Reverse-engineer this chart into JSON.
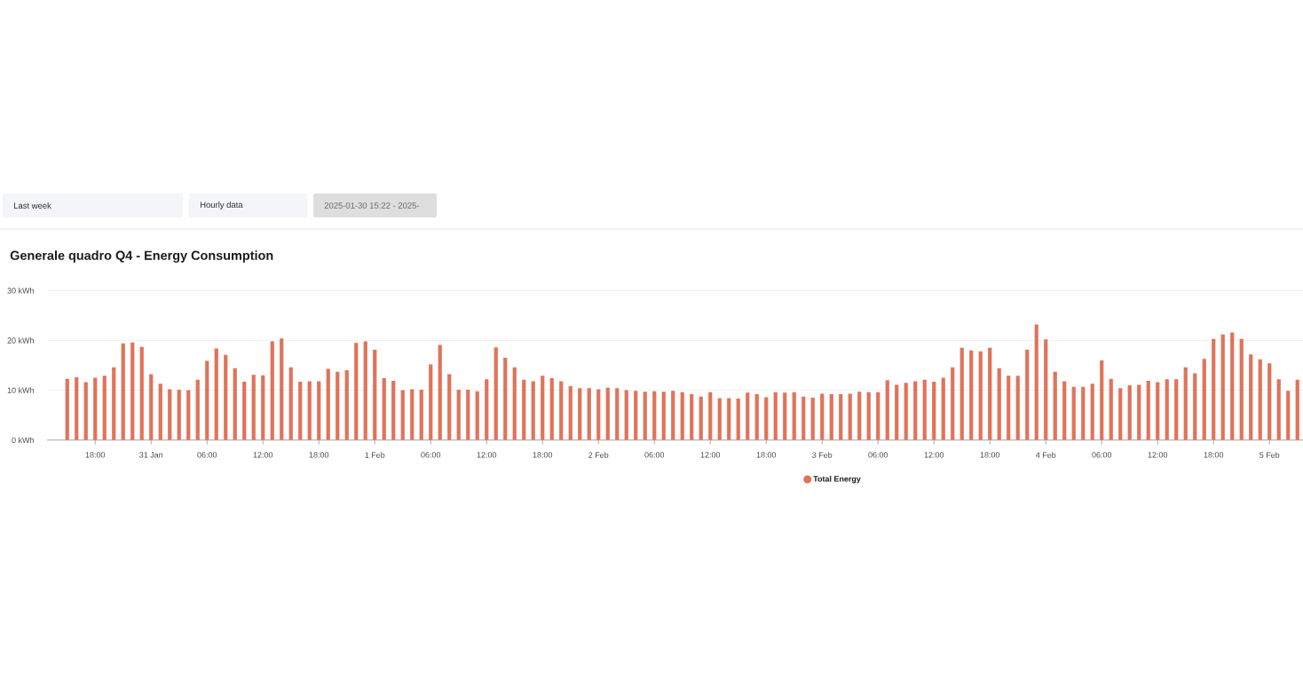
{
  "chart_data": {
    "type": "bar",
    "title": "Generale quadro Q4 - Energy Consumption",
    "annotations": [
      "Last week",
      "Hourly data",
      "2025-01-30 15:22 - 2025-"
    ],
    "x": [
      "2025-01-30T15:00",
      "2025-01-30T16:00",
      "2025-01-30T17:00",
      "2025-01-30T18:00",
      "2025-01-30T19:00",
      "2025-01-30T20:00",
      "2025-01-30T21:00",
      "2025-01-30T22:00",
      "2025-01-30T23:00",
      "2025-01-31T00:00",
      "2025-01-31T01:00",
      "2025-01-31T02:00",
      "2025-01-31T03:00",
      "2025-01-31T04:00",
      "2025-01-31T05:00",
      "2025-01-31T06:00",
      "2025-01-31T07:00",
      "2025-01-31T08:00",
      "2025-01-31T09:00",
      "2025-01-31T10:00",
      "2025-01-31T11:00",
      "2025-01-31T12:00",
      "2025-01-31T13:00",
      "2025-01-31T14:00",
      "2025-01-31T15:00",
      "2025-01-31T16:00",
      "2025-01-31T17:00",
      "2025-01-31T18:00",
      "2025-01-31T19:00",
      "2025-01-31T20:00",
      "2025-01-31T21:00",
      "2025-01-31T22:00",
      "2025-01-31T23:00",
      "2025-02-01T00:00",
      "2025-02-01T01:00",
      "2025-02-01T02:00",
      "2025-02-01T03:00",
      "2025-02-01T04:00",
      "2025-02-01T05:00",
      "2025-02-01T06:00",
      "2025-02-01T07:00",
      "2025-02-01T08:00",
      "2025-02-01T09:00",
      "2025-02-01T10:00",
      "2025-02-01T11:00",
      "2025-02-01T12:00",
      "2025-02-01T13:00",
      "2025-02-01T14:00",
      "2025-02-01T15:00",
      "2025-02-01T16:00",
      "2025-02-01T17:00",
      "2025-02-01T18:00",
      "2025-02-01T19:00",
      "2025-02-01T20:00",
      "2025-02-01T21:00",
      "2025-02-01T22:00",
      "2025-02-01T23:00",
      "2025-02-02T00:00",
      "2025-02-02T01:00",
      "2025-02-02T02:00",
      "2025-02-02T03:00",
      "2025-02-02T04:00",
      "2025-02-02T05:00",
      "2025-02-02T06:00",
      "2025-02-02T07:00",
      "2025-02-02T08:00",
      "2025-02-02T09:00",
      "2025-02-02T10:00",
      "2025-02-02T11:00",
      "2025-02-02T12:00",
      "2025-02-02T13:00",
      "2025-02-02T14:00",
      "2025-02-02T15:00",
      "2025-02-02T16:00",
      "2025-02-02T17:00",
      "2025-02-02T18:00",
      "2025-02-02T19:00",
      "2025-02-02T20:00",
      "2025-02-02T21:00",
      "2025-02-02T22:00",
      "2025-02-02T23:00",
      "2025-02-03T00:00",
      "2025-02-03T01:00",
      "2025-02-03T02:00",
      "2025-02-03T03:00",
      "2025-02-03T04:00",
      "2025-02-03T05:00",
      "2025-02-03T06:00",
      "2025-02-03T07:00",
      "2025-02-03T08:00",
      "2025-02-03T09:00",
      "2025-02-03T10:00",
      "2025-02-03T11:00",
      "2025-02-03T12:00",
      "2025-02-03T13:00",
      "2025-02-03T14:00",
      "2025-02-03T15:00",
      "2025-02-03T16:00",
      "2025-02-03T17:00",
      "2025-02-03T18:00",
      "2025-02-03T19:00",
      "2025-02-03T20:00",
      "2025-02-03T21:00",
      "2025-02-03T22:00",
      "2025-02-03T23:00",
      "2025-02-04T00:00",
      "2025-02-04T01:00",
      "2025-02-04T02:00",
      "2025-02-04T03:00",
      "2025-02-04T04:00",
      "2025-02-04T05:00",
      "2025-02-04T06:00",
      "2025-02-04T07:00",
      "2025-02-04T08:00",
      "2025-02-04T09:00",
      "2025-02-04T10:00",
      "2025-02-04T11:00",
      "2025-02-04T12:00",
      "2025-02-04T13:00",
      "2025-02-04T14:00",
      "2025-02-04T15:00",
      "2025-02-04T16:00",
      "2025-02-04T17:00",
      "2025-02-04T18:00",
      "2025-02-04T19:00",
      "2025-02-04T20:00",
      "2025-02-04T21:00",
      "2025-02-04T22:00",
      "2025-02-04T23:00",
      "2025-02-05T00:00",
      "2025-02-05T01:00",
      "2025-02-05T02:00",
      "2025-02-05T03:00"
    ],
    "series": [
      {
        "name": "Total Energy",
        "color": "#e0735a",
        "values": [
          12.3,
          12.6,
          11.6,
          12.5,
          12.9,
          14.6,
          19.4,
          19.6,
          18.7,
          13.2,
          11.3,
          10.2,
          10.1,
          10.0,
          12.1,
          15.9,
          18.4,
          17.1,
          14.4,
          11.7,
          13.1,
          13.0,
          19.8,
          20.4,
          14.6,
          11.7,
          11.8,
          11.8,
          14.3,
          13.7,
          14.0,
          19.5,
          19.8,
          18.1,
          12.4,
          11.9,
          10.0,
          10.2,
          10.1,
          15.2,
          19.1,
          13.2,
          10.1,
          10.1,
          9.8,
          12.2,
          18.6,
          16.5,
          14.6,
          12.1,
          11.8,
          12.9,
          12.4,
          11.8,
          10.8,
          10.4,
          10.4,
          10.2,
          10.5,
          10.4,
          10.0,
          9.9,
          9.7,
          9.8,
          9.7,
          9.9,
          9.6,
          9.2,
          8.7,
          9.6,
          8.4,
          8.4,
          8.3,
          9.5,
          9.2,
          8.6,
          9.6,
          9.5,
          9.6,
          8.7,
          8.5,
          9.3,
          9.2,
          9.2,
          9.3,
          9.7,
          9.6,
          9.6,
          12.0,
          11.1,
          11.5,
          11.8,
          12.1,
          11.7,
          12.5,
          14.6,
          18.5,
          18.0,
          17.8,
          18.5,
          14.4,
          12.9,
          12.9,
          18.1,
          23.2,
          20.2,
          13.7,
          11.8,
          10.7,
          10.7,
          11.3,
          16.0,
          12.3,
          10.4,
          11.0,
          11.1,
          11.9,
          11.6,
          12.2,
          12.2,
          14.6,
          13.4,
          16.3,
          20.3,
          21.2,
          21.6,
          20.3,
          17.2,
          16.2,
          15.4,
          12.2,
          9.9,
          12.1
        ]
      }
    ],
    "xlim": [
      "2025-01-30T12:50",
      "2025-02-05T03:36"
    ],
    "xticks": [
      {
        "value": "2025-01-30T18:00",
        "label": "18:00"
      },
      {
        "value": "2025-01-31T00:00",
        "label": "31 Jan"
      },
      {
        "value": "2025-01-31T06:00",
        "label": "06:00"
      },
      {
        "value": "2025-01-31T12:00",
        "label": "12:00"
      },
      {
        "value": "2025-01-31T18:00",
        "label": "18:00"
      },
      {
        "value": "2025-02-01T00:00",
        "label": "1 Feb"
      },
      {
        "value": "2025-02-01T06:00",
        "label": "06:00"
      },
      {
        "value": "2025-02-01T12:00",
        "label": "12:00"
      },
      {
        "value": "2025-02-01T18:00",
        "label": "18:00"
      },
      {
        "value": "2025-02-02T00:00",
        "label": "2 Feb"
      },
      {
        "value": "2025-02-02T06:00",
        "label": "06:00"
      },
      {
        "value": "2025-02-02T12:00",
        "label": "12:00"
      },
      {
        "value": "2025-02-02T18:00",
        "label": "18:00"
      },
      {
        "value": "2025-02-03T00:00",
        "label": "3 Feb"
      },
      {
        "value": "2025-02-03T06:00",
        "label": "06:00"
      },
      {
        "value": "2025-02-03T12:00",
        "label": "12:00"
      },
      {
        "value": "2025-02-03T18:00",
        "label": "18:00"
      },
      {
        "value": "2025-02-04T00:00",
        "label": "4 Feb"
      },
      {
        "value": "2025-02-04T06:00",
        "label": "06:00"
      },
      {
        "value": "2025-02-04T12:00",
        "label": "12:00"
      },
      {
        "value": "2025-02-04T18:00",
        "label": "18:00"
      },
      {
        "value": "2025-02-05T00:00",
        "label": "5 Feb"
      }
    ],
    "ylim": [
      0,
      30
    ],
    "yticks": [
      {
        "value": 0,
        "label": "0 kWh"
      },
      {
        "value": 10,
        "label": "10 kWh"
      },
      {
        "value": 20,
        "label": "20 kWh"
      },
      {
        "value": 30,
        "label": "30 kWh"
      }
    ],
    "grid": "y",
    "legend": "bottom"
  }
}
